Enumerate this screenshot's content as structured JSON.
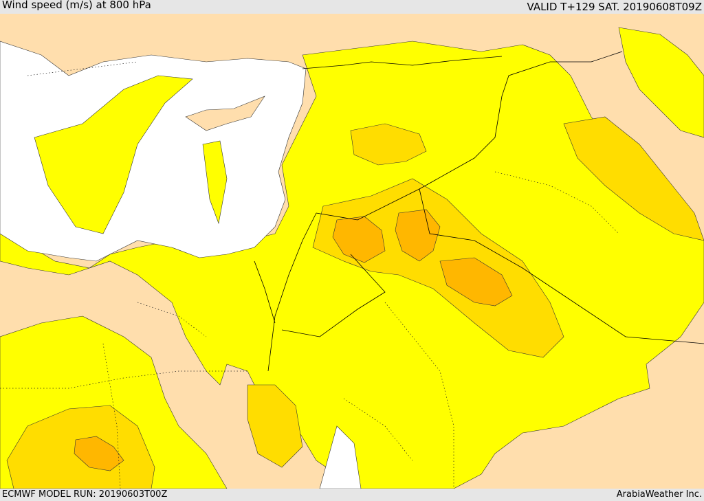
{
  "header": {
    "title": "Wind speed (m/s) at 800 hPa",
    "valid_time": "VALID T+129 SAT. 20190608T09Z"
  },
  "footer": {
    "model_run": "ECMWF MODEL RUN: 20190603T00Z",
    "credit": "ArabiaWeather Inc."
  },
  "map": {
    "variable": "wind speed",
    "level": "800 hPa",
    "colors": {
      "calm": "#ffffff",
      "light": "#ffdead",
      "moderate": "#ffff00",
      "fresh": "#ffdd00",
      "strong": "#ffb700",
      "border": "#000000"
    }
  }
}
